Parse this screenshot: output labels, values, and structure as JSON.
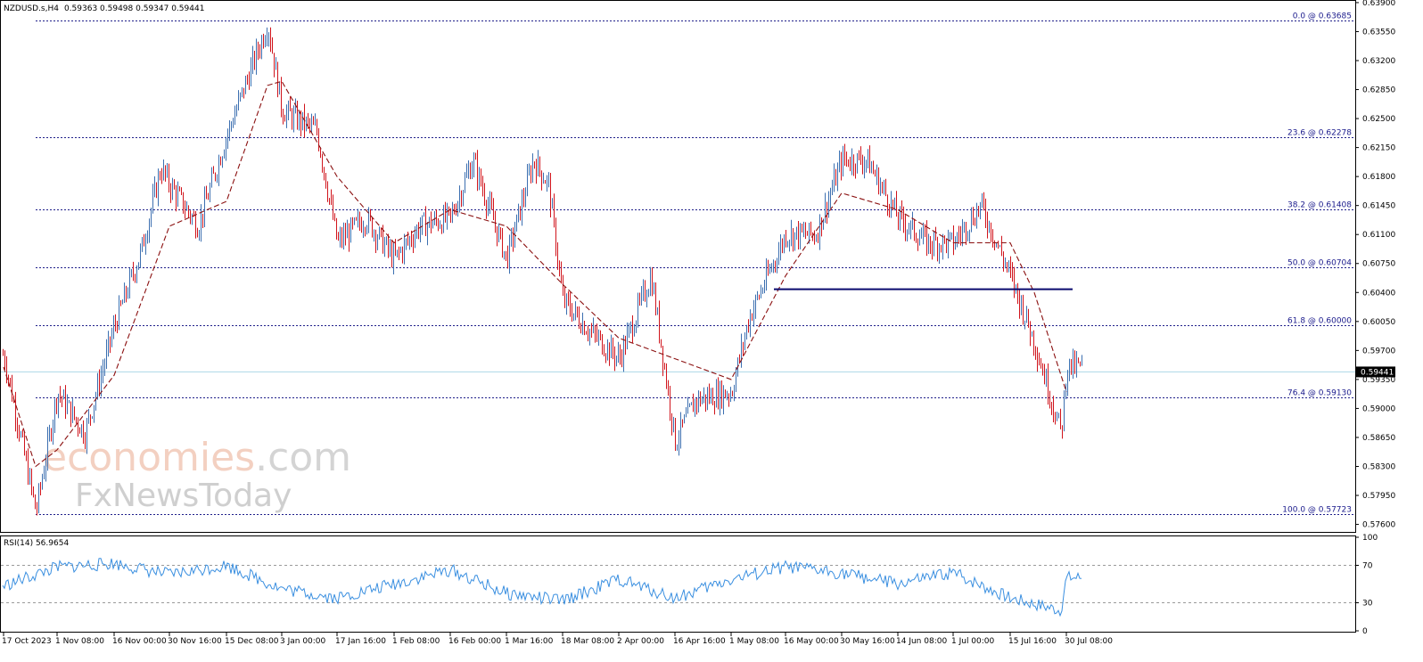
{
  "header": {
    "symbol": "NZDUSD.s,H4",
    "ohlc": "0.59363 0.59498 0.59347 0.59441"
  },
  "rsi_header": "RSI(14) 56.9654",
  "watermark": {
    "line1a": "economies",
    "line1b": ".com",
    "line2": "FxNewsToday"
  },
  "colors": {
    "bull": "#3c6fb0",
    "bear": "#d0141c",
    "ma": "#8b1010",
    "fib": "#1f1f8a",
    "support": "#0a0a6e",
    "rsi": "#3a8fe0",
    "price_line": "#add8e6",
    "price_box": "#000000"
  },
  "chart_data": [
    {
      "type": "candlestick",
      "title": "NZDUSD.s,H4",
      "ylim": [
        0.5752,
        0.6391
      ],
      "y_ticks": [
        "0.63900",
        "0.63550",
        "0.63200",
        "0.62850",
        "0.62500",
        "0.62150",
        "0.61800",
        "0.61450",
        "0.61100",
        "0.60750",
        "0.60400",
        "0.60050",
        "0.59700",
        "0.59350",
        "0.59000",
        "0.58650",
        "0.58300",
        "0.57950",
        "0.57600"
      ],
      "x_tick_labels": [
        "17 Oct 2023",
        "1 Nov 08:00",
        "16 Nov 00:00",
        "30 Nov 16:00",
        "15 Dec 08:00",
        "3 Jan 00:00",
        "17 Jan 16:00",
        "1 Feb 08:00",
        "16 Feb 00:00",
        "1 Mar 16:00",
        "18 Mar 08:00",
        "2 Apr 00:00",
        "16 Apr 16:00",
        "1 May 08:00",
        "16 May 00:00",
        "30 May 16:00",
        "14 Jun 08:00",
        "1 Jul 00:00",
        "15 Jul 16:00",
        "30 Jul 08:00"
      ],
      "current_price": "0.59441",
      "fib_levels": [
        {
          "label": "0.0 @ 0.63685",
          "value": 0.63685
        },
        {
          "label": "23.6 @ 0.62278",
          "value": 0.62278
        },
        {
          "label": "38.2 @ 0.61408",
          "value": 0.61408
        },
        {
          "label": "50.0 @ 0.60704",
          "value": 0.60704
        },
        {
          "label": "61.8 @ 0.60000",
          "value": 0.6
        },
        {
          "label": "76.4 @ 0.59130",
          "value": 0.5913
        },
        {
          "label": "100.0 @ 0.57723",
          "value": 0.57723
        }
      ],
      "support_line": {
        "value": 0.6044,
        "from": "1 May 08:00",
        "to": "30 Jul 08:00"
      },
      "price_path": [
        {
          "x": "17 Oct 2023",
          "y": 0.5965
        },
        {
          "x": "25 Oct 2023",
          "y": 0.5775
        },
        {
          "x": "1 Nov 08:00",
          "y": 0.592
        },
        {
          "x": "8 Nov 2023",
          "y": 0.587
        },
        {
          "x": "16 Nov 00:00",
          "y": 0.6
        },
        {
          "x": "23 Nov 2023",
          "y": 0.609
        },
        {
          "x": "28 Nov 2023",
          "y": 0.619
        },
        {
          "x": "30 Nov 16:00",
          "y": 0.617
        },
        {
          "x": "7 Dec 2023",
          "y": 0.612
        },
        {
          "x": "15 Dec 08:00",
          "y": 0.623
        },
        {
          "x": "27 Dec 2023",
          "y": 0.6365
        },
        {
          "x": "3 Jan 00:00",
          "y": 0.626
        },
        {
          "x": "12 Jan 2024",
          "y": 0.6235
        },
        {
          "x": "17 Jan 16:00",
          "y": 0.61
        },
        {
          "x": "24 Jan 2024",
          "y": 0.613
        },
        {
          "x": "1 Feb 08:00",
          "y": 0.608
        },
        {
          "x": "8 Feb 2024",
          "y": 0.612
        },
        {
          "x": "16 Feb 00:00",
          "y": 0.613
        },
        {
          "x": "21 Feb 2024",
          "y": 0.62
        },
        {
          "x": "1 Mar 16:00",
          "y": 0.608
        },
        {
          "x": "8 Mar 2024",
          "y": 0.62
        },
        {
          "x": "12 Mar 2024",
          "y": 0.617
        },
        {
          "x": "18 Mar 08:00",
          "y": 0.603
        },
        {
          "x": "26 Mar 2024",
          "y": 0.599
        },
        {
          "x": "2 Apr 00:00",
          "y": 0.596
        },
        {
          "x": "8 Apr 2024",
          "y": 0.606
        },
        {
          "x": "16 Apr 16:00",
          "y": 0.586
        },
        {
          "x": "22 Apr 2024",
          "y": 0.591
        },
        {
          "x": "1 May 08:00",
          "y": 0.592
        },
        {
          "x": "6 May 2024",
          "y": 0.601
        },
        {
          "x": "16 May 00:00",
          "y": 0.611
        },
        {
          "x": "24 May 2024",
          "y": 0.611
        },
        {
          "x": "30 May 16:00",
          "y": 0.62
        },
        {
          "x": "7 Jun 2024",
          "y": 0.62
        },
        {
          "x": "14 Jun 08:00",
          "y": 0.613
        },
        {
          "x": "21 Jun 2024",
          "y": 0.61
        },
        {
          "x": "1 Jul 00:00",
          "y": 0.61
        },
        {
          "x": "5 Jul 2024",
          "y": 0.6145
        },
        {
          "x": "15 Jul 16:00",
          "y": 0.606
        },
        {
          "x": "23 Jul 2024",
          "y": 0.598
        },
        {
          "x": "28 Jul 2024",
          "y": 0.587
        },
        {
          "x": "30 Jul 08:00",
          "y": 0.595
        }
      ],
      "moving_average": [
        {
          "x": "17 Oct 2023",
          "y": 0.595
        },
        {
          "x": "25 Oct 2023",
          "y": 0.583
        },
        {
          "x": "1 Nov 08:00",
          "y": 0.585
        },
        {
          "x": "16 Nov 00:00",
          "y": 0.594
        },
        {
          "x": "30 Nov 16:00",
          "y": 0.612
        },
        {
          "x": "15 Dec 08:00",
          "y": 0.615
        },
        {
          "x": "27 Dec 2023",
          "y": 0.629
        },
        {
          "x": "3 Jan 00:00",
          "y": 0.6295
        },
        {
          "x": "17 Jan 16:00",
          "y": 0.618
        },
        {
          "x": "1 Feb 08:00",
          "y": 0.61
        },
        {
          "x": "16 Feb 00:00",
          "y": 0.614
        },
        {
          "x": "1 Mar 16:00",
          "y": 0.612
        },
        {
          "x": "18 Mar 08:00",
          "y": 0.605
        },
        {
          "x": "2 Apr 00:00",
          "y": 0.5985
        },
        {
          "x": "16 Apr 16:00",
          "y": 0.596
        },
        {
          "x": "1 May 08:00",
          "y": 0.5935
        },
        {
          "x": "16 May 00:00",
          "y": 0.606
        },
        {
          "x": "30 May 16:00",
          "y": 0.616
        },
        {
          "x": "14 Jun 08:00",
          "y": 0.614
        },
        {
          "x": "1 Jul 00:00",
          "y": 0.61
        },
        {
          "x": "15 Jul 16:00",
          "y": 0.61
        },
        {
          "x": "23 Jul 2024",
          "y": 0.604
        },
        {
          "x": "30 Jul 08:00",
          "y": 0.592
        }
      ]
    },
    {
      "type": "line",
      "title": "RSI(14) 56.9654",
      "ylim": [
        0,
        100
      ],
      "y_ticks": [
        "100",
        "70",
        "30",
        "0"
      ],
      "levels": [
        70,
        30
      ],
      "series": [
        {
          "name": "RSI(14)",
          "values": [
            {
              "x": "17 Oct 2023",
              "y": 48
            },
            {
              "x": "1 Nov 08:00",
              "y": 68
            },
            {
              "x": "16 Nov 00:00",
              "y": 72
            },
            {
              "x": "30 Nov 16:00",
              "y": 60
            },
            {
              "x": "15 Dec 08:00",
              "y": 70
            },
            {
              "x": "3 Jan 00:00",
              "y": 45
            },
            {
              "x": "17 Jan 16:00",
              "y": 35
            },
            {
              "x": "1 Feb 08:00",
              "y": 50
            },
            {
              "x": "16 Feb 00:00",
              "y": 65
            },
            {
              "x": "1 Mar 16:00",
              "y": 40
            },
            {
              "x": "18 Mar 08:00",
              "y": 32
            },
            {
              "x": "2 Apr 00:00",
              "y": 55
            },
            {
              "x": "16 Apr 16:00",
              "y": 35
            },
            {
              "x": "1 May 08:00",
              "y": 55
            },
            {
              "x": "16 May 00:00",
              "y": 68
            },
            {
              "x": "30 May 16:00",
              "y": 62
            },
            {
              "x": "14 Jun 08:00",
              "y": 50
            },
            {
              "x": "1 Jul 00:00",
              "y": 62
            },
            {
              "x": "15 Jul 16:00",
              "y": 35
            },
            {
              "x": "28 Jul 2024",
              "y": 22
            },
            {
              "x": "30 Jul 08:00",
              "y": 57
            }
          ]
        }
      ]
    }
  ]
}
